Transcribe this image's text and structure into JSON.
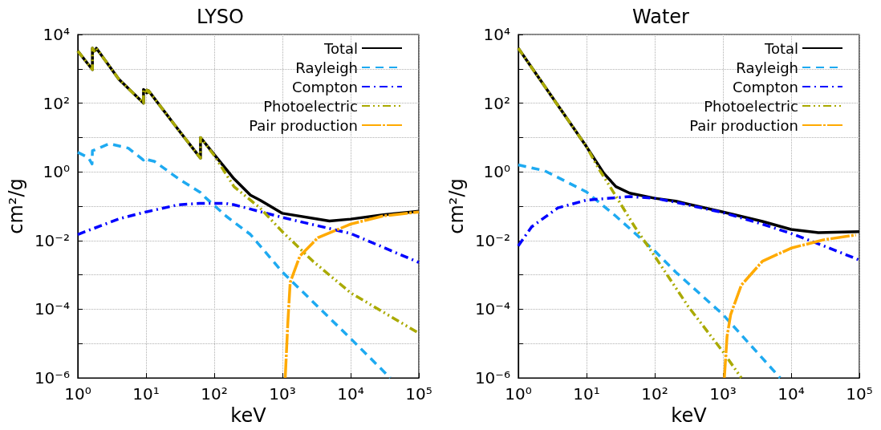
{
  "chart_data": [
    {
      "type": "line",
      "title": "LYSO",
      "xlabel": "keV",
      "ylabel": "cm²/g",
      "log": "xy",
      "grid": true,
      "legend": "top right",
      "xlim": [
        1,
        100000
      ],
      "ylim": [
        1e-06,
        10000
      ],
      "xticks": [
        {
          "value": 1,
          "label": "10⁰"
        },
        {
          "value": 10,
          "label": "10¹"
        },
        {
          "value": 100,
          "label": "10²"
        },
        {
          "value": 1000,
          "label": "10³"
        },
        {
          "value": 10000,
          "label": "10⁴"
        },
        {
          "value": 100000,
          "label": "10⁵"
        }
      ],
      "yticks": [
        {
          "value": 1e-06,
          "label": "10⁻⁶"
        },
        {
          "value": 1e-05,
          "label": null
        },
        {
          "value": 0.0001,
          "label": "10⁻⁴"
        },
        {
          "value": 0.001,
          "label": null
        },
        {
          "value": 0.01,
          "label": "10⁻²"
        },
        {
          "value": 0.1,
          "label": null
        },
        {
          "value": 1,
          "label": "10⁰"
        },
        {
          "value": 10,
          "label": null
        },
        {
          "value": 100,
          "label": "10²"
        },
        {
          "value": 1000,
          "label": null
        },
        {
          "value": 10000,
          "label": "10⁴"
        }
      ],
      "series": [
        {
          "name": "Total",
          "color": "#000000",
          "line_style": "solid",
          "x": [
            1,
            1.64,
            1.64,
            1.75,
            1.87,
            1.87,
            4,
            9.2,
            9.2,
            10.3,
            10.3,
            10.9,
            10.9,
            30,
            63,
            63,
            100,
            195,
            340,
            470,
            1000,
            4900,
            10000,
            30000,
            100000
          ],
          "values": [
            3300,
            950,
            4000,
            3300,
            3600,
            4000,
            500,
            100,
            250,
            200,
            240,
            210,
            230,
            16.6,
            2.5,
            10,
            3.2,
            0.63,
            0.21,
            0.15,
            0.062,
            0.037,
            0.042,
            0.056,
            0.071
          ]
        },
        {
          "name": "Rayleigh",
          "color": "#1eaaf1",
          "line_style": "dashed",
          "x": [
            1,
            1.43,
            1.62,
            1.64,
            2.9,
            5.5,
            9.2,
            9.2,
            13.4,
            30,
            63,
            74,
            150,
            340,
            1000,
            10000,
            38000
          ],
          "values": [
            3.7,
            2.6,
            1.7,
            4.1,
            6.6,
            4.9,
            2.2,
            2.4,
            2,
            0.63,
            0.25,
            0.18,
            0.051,
            0.015,
            0.0012,
            1.4e-05,
            1e-06
          ]
        },
        {
          "name": "Compton",
          "color": "#0000ff",
          "line_style": "dashdot",
          "x": [
            1,
            4.2,
            10,
            30,
            60,
            150,
            195,
            1000,
            10000,
            100000
          ],
          "values": [
            0.015,
            0.044,
            0.068,
            0.11,
            0.12,
            0.12,
            0.11,
            0.047,
            0.016,
            0.0023
          ]
        },
        {
          "name": "Photoelectric",
          "color": "#aaaa00",
          "line_style": "dashdotdot",
          "x": [
            1,
            1.64,
            1.64,
            1.75,
            1.87,
            1.87,
            4,
            9.2,
            9.2,
            10.3,
            10.3,
            10.9,
            10.9,
            30,
            63,
            63,
            100,
            195,
            470,
            1000,
            2800,
            10000,
            100000
          ],
          "values": [
            3300,
            950,
            4000,
            3300,
            3600,
            4000,
            500,
            100,
            250,
            200,
            240,
            210,
            230,
            16.6,
            2.5,
            10,
            3,
            0.37,
            0.089,
            0.018,
            0.0025,
            0.0003,
            2e-05
          ]
        },
        {
          "name": "Pair production",
          "color": "#ffaa00",
          "line_style": "longdashdot",
          "x": [
            1100,
            1200,
            1300,
            1800,
            3300,
            10000,
            30000,
            100000
          ],
          "values": [
            1e-06,
            3.9e-05,
            0.0006,
            0.0035,
            0.012,
            0.03,
            0.052,
            0.068
          ]
        }
      ]
    },
    {
      "type": "line",
      "title": "Water",
      "xlabel": "keV",
      "ylabel": "cm²/g",
      "log": "xy",
      "grid": true,
      "legend": "top right",
      "xlim": [
        1,
        100000
      ],
      "ylim": [
        1e-06,
        10000
      ],
      "xticks": [
        {
          "value": 1,
          "label": "10⁰"
        },
        {
          "value": 10,
          "label": "10¹"
        },
        {
          "value": 100,
          "label": "10²"
        },
        {
          "value": 1000,
          "label": "10³"
        },
        {
          "value": 10000,
          "label": "10⁴"
        },
        {
          "value": 100000,
          "label": "10⁵"
        }
      ],
      "yticks": [
        {
          "value": 1e-06,
          "label": "10⁻⁶"
        },
        {
          "value": 1e-05,
          "label": null
        },
        {
          "value": 0.0001,
          "label": "10⁻⁴"
        },
        {
          "value": 0.001,
          "label": null
        },
        {
          "value": 0.01,
          "label": "10⁻²"
        },
        {
          "value": 0.1,
          "label": null
        },
        {
          "value": 1,
          "label": "10⁰"
        },
        {
          "value": 10,
          "label": null
        },
        {
          "value": 100,
          "label": "10²"
        },
        {
          "value": 1000,
          "label": null
        },
        {
          "value": 10000,
          "label": "10⁴"
        }
      ],
      "series": [
        {
          "name": "Total",
          "color": "#000000",
          "line_style": "solid",
          "x": [
            1,
            10,
            18,
            27,
            43,
            100,
            204,
            310,
            1000,
            3800,
            10000,
            25000,
            100000
          ],
          "values": [
            4000,
            5.4,
            0.9,
            0.37,
            0.24,
            0.17,
            0.14,
            0.115,
            0.068,
            0.036,
            0.021,
            0.017,
            0.018
          ]
        },
        {
          "name": "Rayleigh",
          "color": "#1eaaf1",
          "line_style": "dashed",
          "x": [
            1,
            2.45,
            10,
            27,
            100,
            204,
            1000,
            6900
          ],
          "values": [
            1.6,
            1.07,
            0.26,
            0.051,
            0.005,
            0.0012,
            7e-05,
            1e-06
          ]
        },
        {
          "name": "Compton",
          "color": "#0000ff",
          "line_style": "dashdot",
          "x": [
            1,
            1.57,
            3.8,
            10,
            43,
            100,
            204,
            1000,
            3800,
            10000,
            30000,
            100000
          ],
          "values": [
            0.007,
            0.025,
            0.089,
            0.15,
            0.19,
            0.17,
            0.13,
            0.065,
            0.03,
            0.016,
            0.007,
            0.0027
          ]
        },
        {
          "name": "Photoelectric",
          "color": "#aaaa00",
          "line_style": "dashdotdot",
          "x": [
            1,
            10,
            15,
            21,
            51,
            100,
            310,
            1000,
            1860
          ],
          "values": [
            4000,
            5.4,
            1.26,
            0.44,
            0.025,
            0.0035,
            0.00012,
            5.8e-06,
            1e-06
          ]
        },
        {
          "name": "Pair production",
          "color": "#ffaa00",
          "line_style": "longdashdot",
          "x": [
            1050,
            1150,
            1300,
            1860,
            3800,
            10000,
            30000,
            89000
          ],
          "values": [
            1e-06,
            1.6e-05,
            7e-05,
            0.0005,
            0.0025,
            0.006,
            0.0105,
            0.0145
          ]
        }
      ]
    }
  ]
}
